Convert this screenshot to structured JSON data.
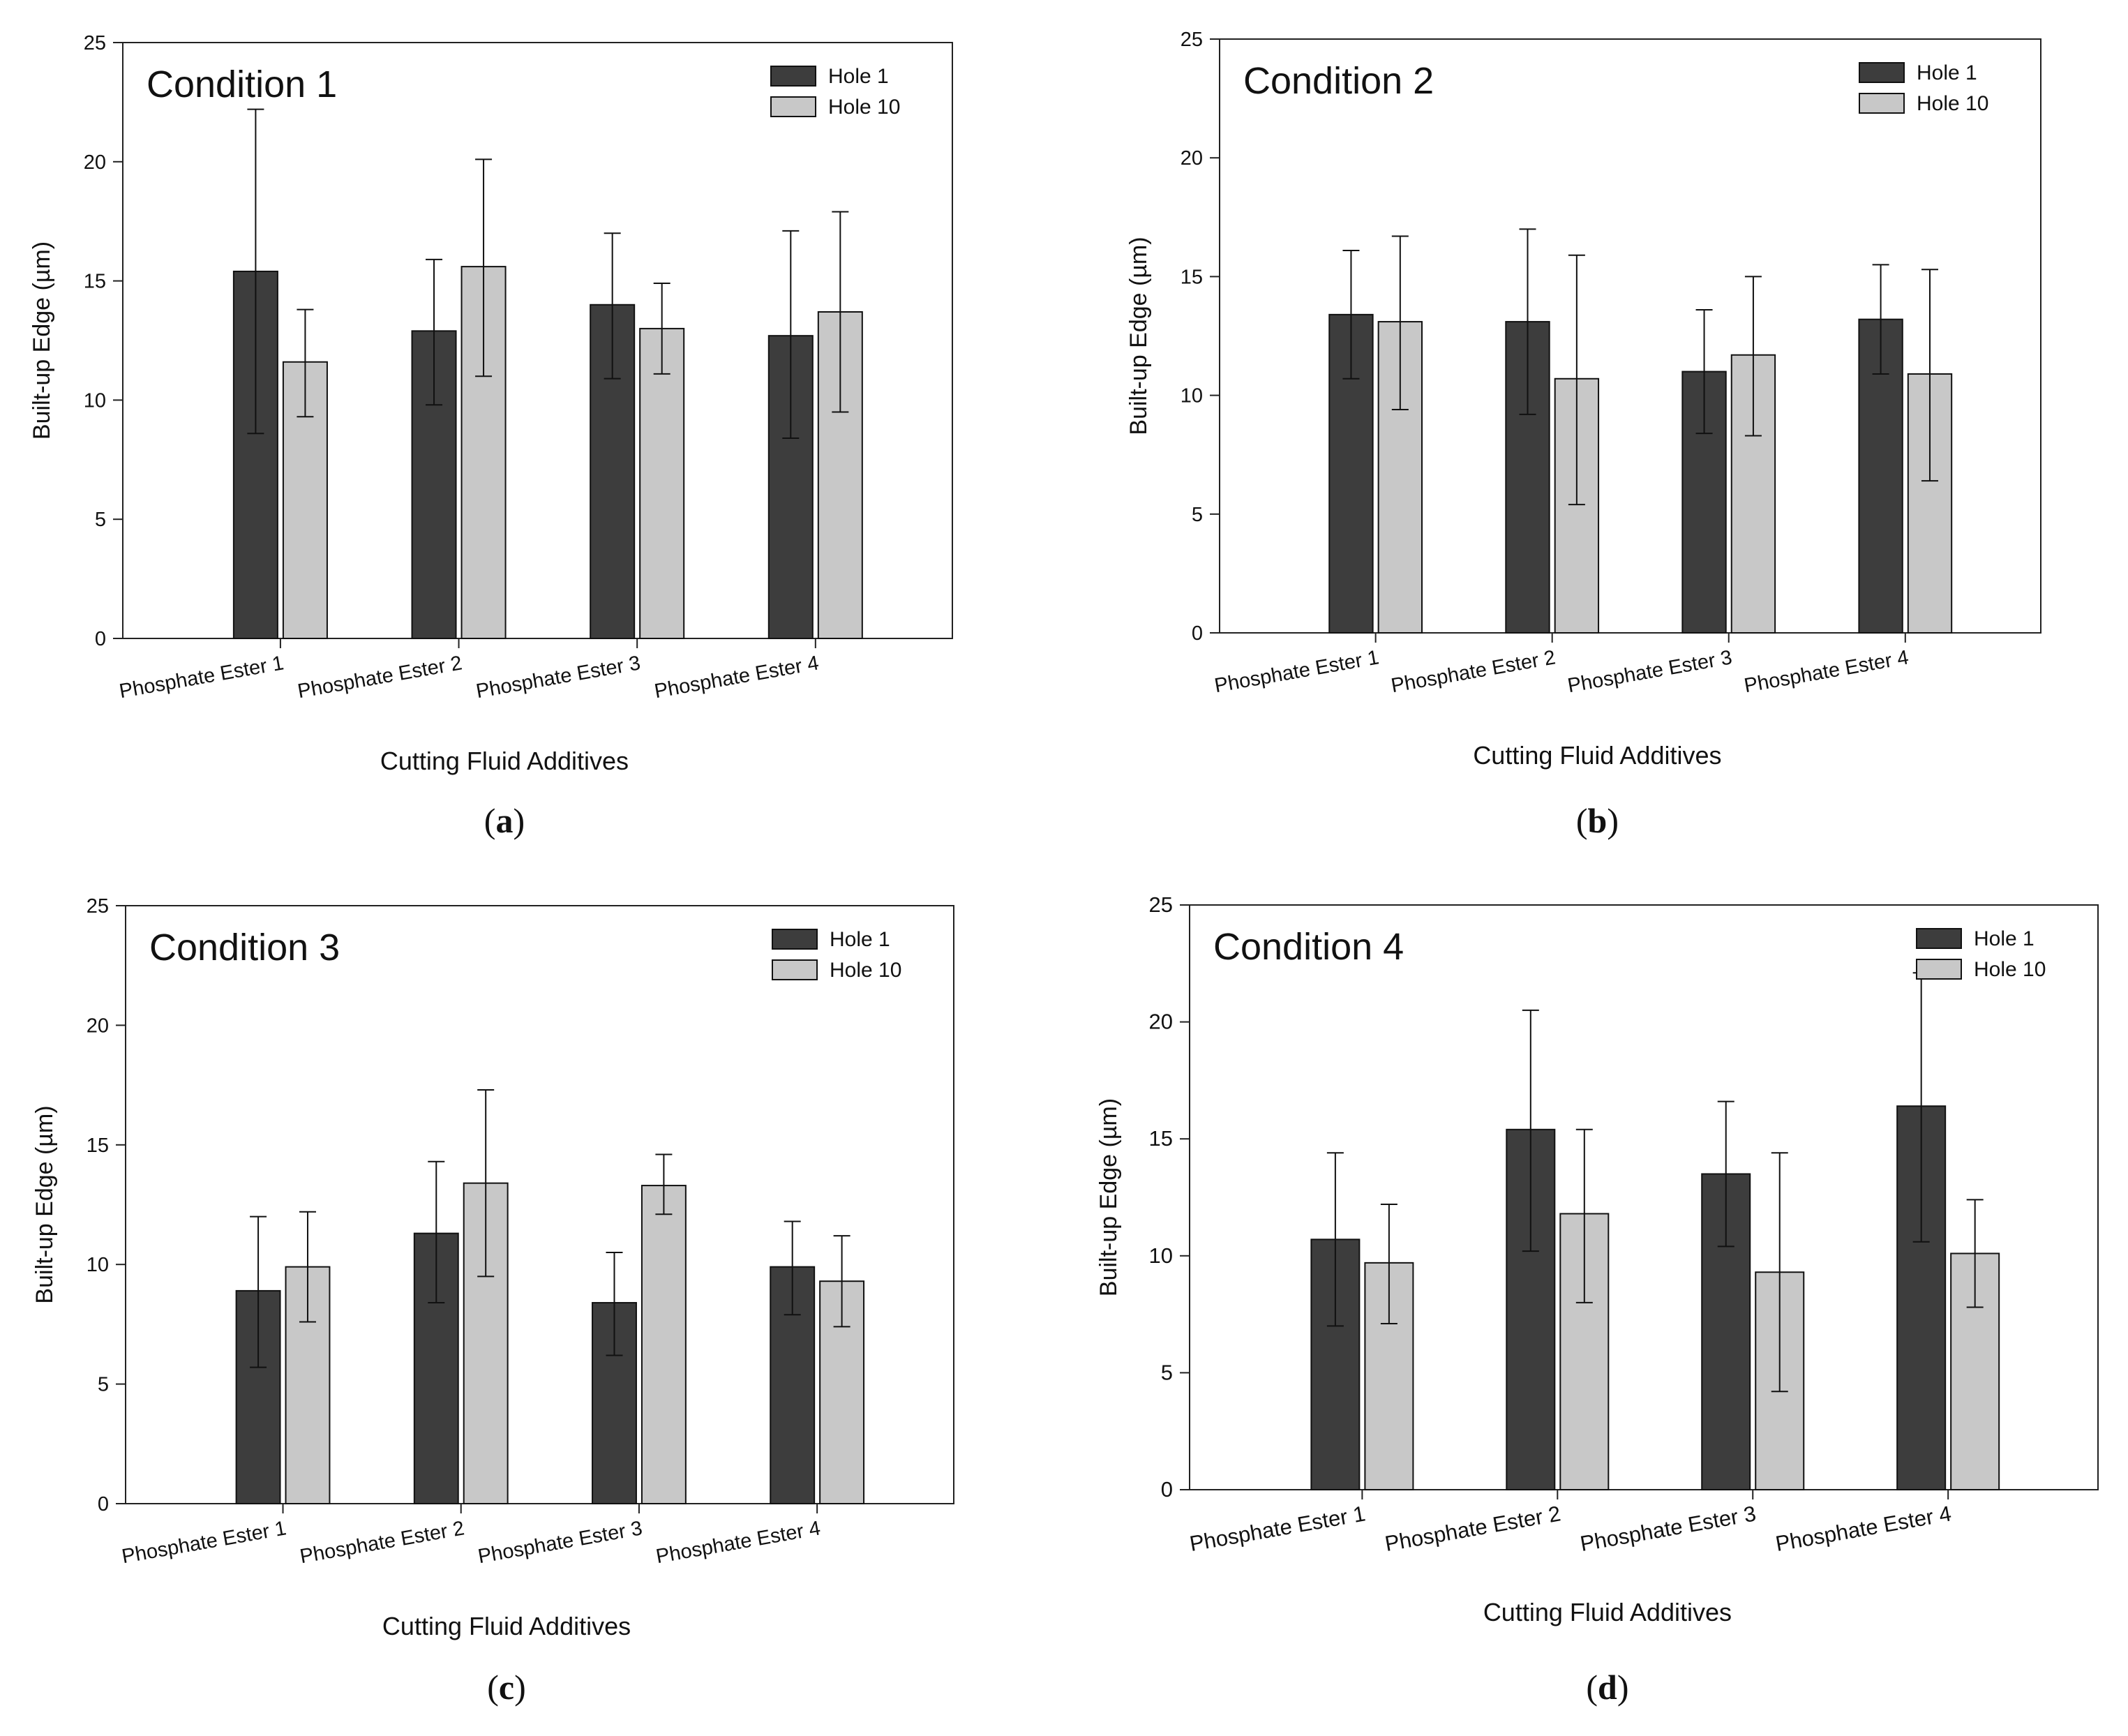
{
  "colors": {
    "hole1": "#3d3d3d",
    "hole10": "#c8c8c8",
    "axis": "#222222",
    "text": "#111111"
  },
  "chart_data": [
    {
      "type": "bar",
      "panel_label": "a",
      "title": "Condition 1",
      "xlabel": "Cutting Fluid Additives",
      "ylabel": "Built-up Edge (µm)",
      "ylim": [
        0,
        25
      ],
      "yticks": [
        "0",
        "5",
        "10",
        "15",
        "20",
        "25"
      ],
      "categories": [
        "Phosphate Ester 1",
        "Phosphate Ester 2",
        "Phosphate Ester 3",
        "Phosphate Ester 4"
      ],
      "legend_position": "top-right",
      "series": [
        {
          "name": "Hole 1",
          "color": "#3d3d3d",
          "values": [
            15.4,
            12.9,
            14.0,
            12.7
          ],
          "error_low": [
            8.6,
            9.8,
            10.9,
            8.4
          ],
          "error_high": [
            22.2,
            15.9,
            17.0,
            17.1
          ]
        },
        {
          "name": "Hole 10",
          "color": "#c8c8c8",
          "values": [
            11.6,
            15.6,
            13.0,
            13.7
          ],
          "error_low": [
            9.3,
            11.0,
            11.1,
            9.5
          ],
          "error_high": [
            13.8,
            20.1,
            14.9,
            17.9
          ]
        }
      ]
    },
    {
      "type": "bar",
      "panel_label": "b",
      "title": "Condition 2",
      "xlabel": "Cutting Fluid Additives",
      "ylabel": "Built-up Edge (µm)",
      "ylim": [
        0,
        25
      ],
      "yticks": [
        "0",
        "5",
        "10",
        "15",
        "20",
        "25"
      ],
      "categories": [
        "Phosphate Ester 1",
        "Phosphate Ester 2",
        "Phosphate Ester 3",
        "Phosphate Ester 4"
      ],
      "legend_position": "top-right",
      "series": [
        {
          "name": "Hole 1",
          "color": "#3d3d3d",
          "values": [
            13.4,
            13.1,
            11.0,
            13.2
          ],
          "error_low": [
            10.7,
            9.2,
            8.4,
            10.9
          ],
          "error_high": [
            16.1,
            17.0,
            13.6,
            15.5
          ]
        },
        {
          "name": "Hole 10",
          "color": "#c8c8c8",
          "values": [
            13.1,
            10.7,
            11.7,
            10.9
          ],
          "error_low": [
            9.4,
            5.4,
            8.3,
            6.4
          ],
          "error_high": [
            16.7,
            15.9,
            15.0,
            15.3
          ]
        }
      ]
    },
    {
      "type": "bar",
      "panel_label": "c",
      "title": "Condition 3",
      "xlabel": "Cutting Fluid Additives",
      "ylabel": "Built-up Edge (µm)",
      "ylim": [
        0,
        25
      ],
      "yticks": [
        "0",
        "5",
        "10",
        "15",
        "20",
        "25"
      ],
      "categories": [
        "Phosphate Ester 1",
        "Phosphate Ester 2",
        "Phosphate Ester 3",
        "Phosphate Ester 4"
      ],
      "legend_position": "top-right",
      "series": [
        {
          "name": "Hole 1",
          "color": "#3d3d3d",
          "values": [
            8.9,
            11.3,
            8.4,
            9.9
          ],
          "error_low": [
            5.7,
            8.4,
            6.2,
            7.9
          ],
          "error_high": [
            12.0,
            14.3,
            10.5,
            11.8
          ]
        },
        {
          "name": "Hole 10",
          "color": "#c8c8c8",
          "values": [
            9.9,
            13.4,
            13.3,
            9.3
          ],
          "error_low": [
            7.6,
            9.5,
            12.1,
            7.4
          ],
          "error_high": [
            12.2,
            17.3,
            14.6,
            11.2
          ]
        }
      ]
    },
    {
      "type": "bar",
      "panel_label": "d",
      "title": "Condition 4",
      "xlabel": "Cutting Fluid Additives",
      "ylabel": "Built-up Edge (µm)",
      "ylim": [
        0,
        25
      ],
      "yticks": [
        "0",
        "5",
        "10",
        "15",
        "20",
        "25"
      ],
      "categories": [
        "Phosphate Ester 1",
        "Phosphate Ester 2",
        "Phosphate Ester 3",
        "Phosphate Ester 4"
      ],
      "legend_position": "top-right",
      "series": [
        {
          "name": "Hole 1",
          "color": "#3d3d3d",
          "values": [
            10.7,
            15.4,
            13.5,
            16.4
          ],
          "error_low": [
            7.0,
            10.2,
            10.4,
            10.6
          ],
          "error_high": [
            14.4,
            20.5,
            16.6,
            22.1
          ]
        },
        {
          "name": "Hole 10",
          "color": "#c8c8c8",
          "values": [
            9.7,
            11.8,
            9.3,
            10.1
          ],
          "error_low": [
            7.1,
            8.0,
            4.2,
            7.8
          ],
          "error_high": [
            12.2,
            15.4,
            14.4,
            12.4
          ]
        }
      ]
    }
  ]
}
